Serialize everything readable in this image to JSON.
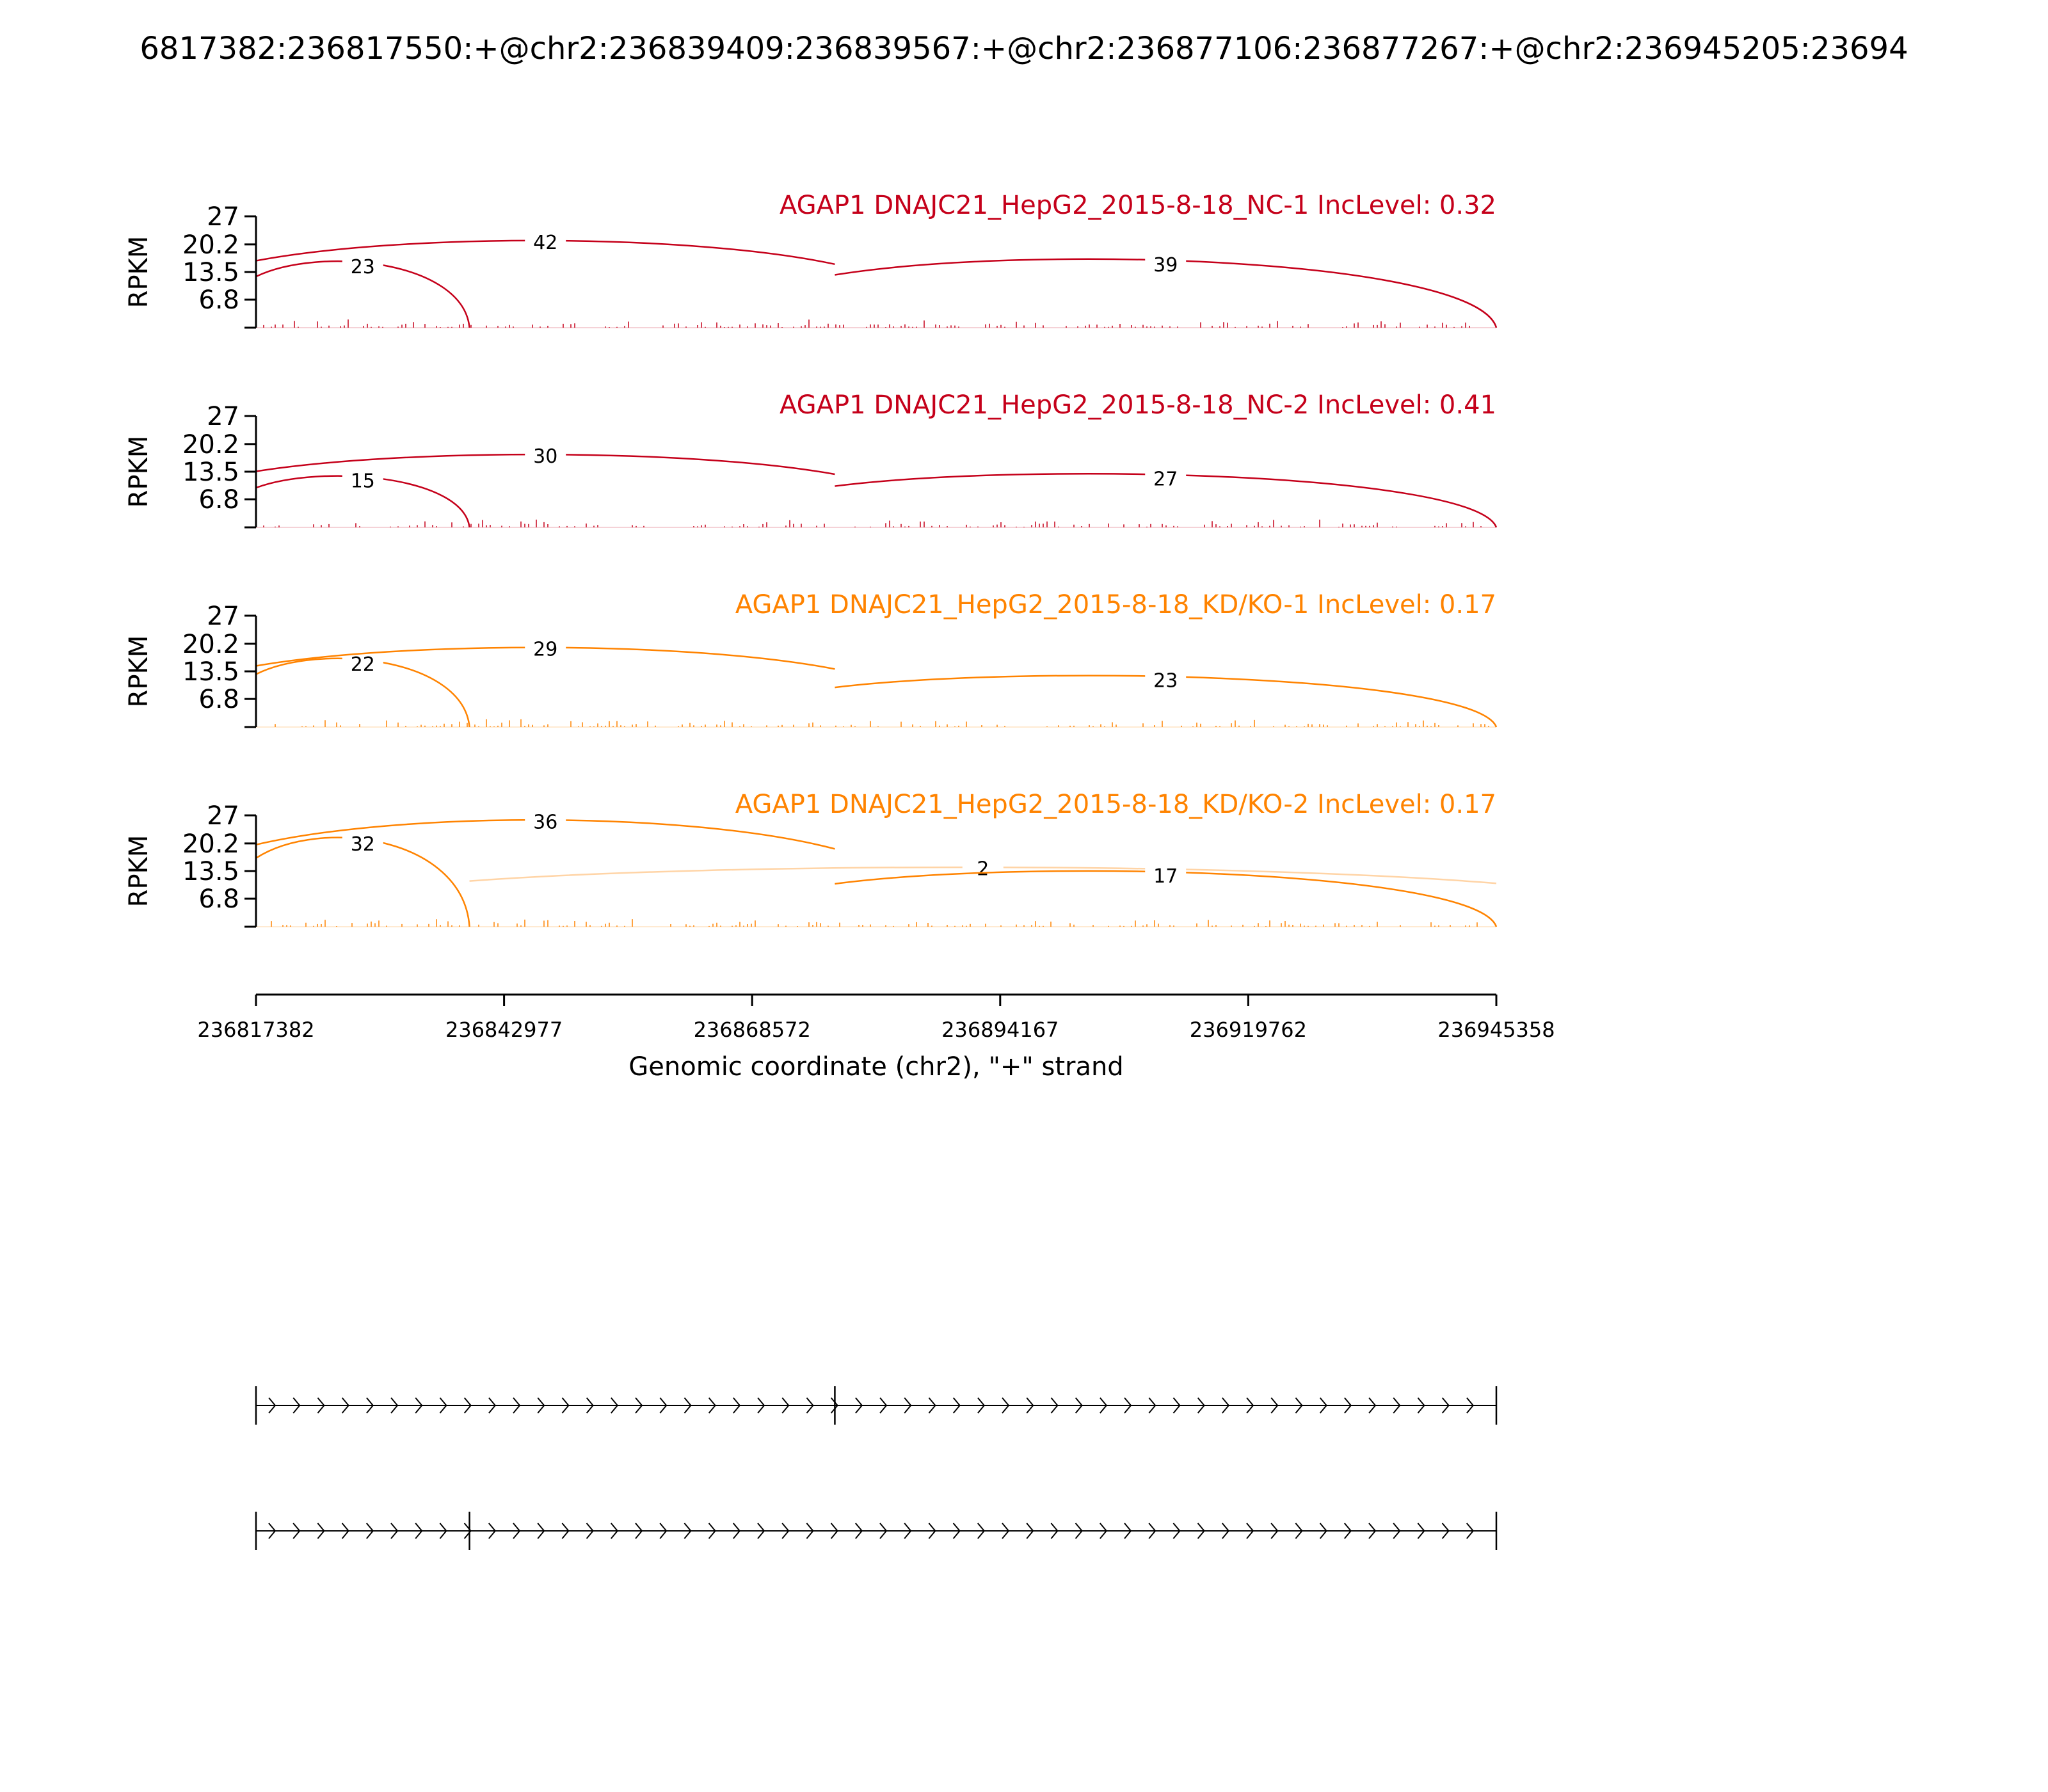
{
  "page_title": "6817382:236817550:+@chr2:236839409:236839567:+@chr2:236877106:236877267:+@chr2:236945205:23694",
  "chart_data": {
    "type": "sashimi",
    "xlabel": "Genomic coordinate (chr2), \"+\" strand",
    "xlim": [
      236817382,
      236945358
    ],
    "xticks": [
      236817382,
      236842977,
      236868572,
      236894167,
      236919762,
      236945358
    ],
    "xtick_labels": [
      "236817382",
      "236842977",
      "236868572",
      "236894167",
      "236919762",
      "236945358"
    ],
    "ylabel": "RPKM",
    "ylim": [
      0,
      27
    ],
    "yticks": [
      6.8,
      13.5,
      20.2,
      27
    ],
    "ytick_labels": [
      "6.8",
      "13.5",
      "20.2",
      "27"
    ],
    "exon_coords": [
      236839409,
      236877106
    ],
    "panels": [
      {
        "title": "AGAP1 DNAJC21_HepG2_2015-8-18_NC-1 IncLevel: 0.32",
        "color": "#c5001a",
        "junctions": [
          {
            "start": 236817382,
            "end": 236839409,
            "count": "23",
            "style": "below",
            "height": 15.5
          },
          {
            "start": 236817382,
            "end": 236877106,
            "count": "42",
            "style": "above",
            "height": 20.8
          },
          {
            "start": 236877106,
            "end": 236945358,
            "count": "39",
            "style": "below",
            "height": 16.0
          }
        ]
      },
      {
        "title": "AGAP1 DNAJC21_HepG2_2015-8-18_NC-2 IncLevel: 0.41",
        "color": "#c5001a",
        "junctions": [
          {
            "start": 236817382,
            "end": 236839409,
            "count": "15",
            "style": "below",
            "height": 12.0
          },
          {
            "start": 236817382,
            "end": 236877106,
            "count": "30",
            "style": "above",
            "height": 17.4
          },
          {
            "start": 236877106,
            "end": 236945358,
            "count": "27",
            "style": "below",
            "height": 12.5
          }
        ]
      },
      {
        "title": "AGAP1 DNAJC21_HepG2_2015-8-18_KD/KO-1 IncLevel: 0.17",
        "color": "#ff8300",
        "junctions": [
          {
            "start": 236817382,
            "end": 236839409,
            "count": "22",
            "style": "below",
            "height": 16.0
          },
          {
            "start": 236817382,
            "end": 236877106,
            "count": "29",
            "style": "above",
            "height": 19.0
          },
          {
            "start": 236877106,
            "end": 236945358,
            "count": "23",
            "style": "below",
            "height": 12.0
          }
        ]
      },
      {
        "title": "AGAP1 DNAJC21_HepG2_2015-8-18_KD/KO-2 IncLevel: 0.17",
        "color": "#ff8300",
        "junctions": [
          {
            "start": 236817382,
            "end": 236839409,
            "count": "32",
            "style": "below",
            "height": 20.8
          },
          {
            "start": 236817382,
            "end": 236877106,
            "count": "36",
            "style": "above",
            "height": 25.5
          },
          {
            "start": 236839409,
            "end": 236945358,
            "count": "2",
            "style": "above",
            "height": 14.2
          },
          {
            "start": 236877106,
            "end": 236945358,
            "count": "17",
            "style": "below",
            "height": 13.0
          }
        ]
      }
    ],
    "isoforms": [
      {
        "exons": [
          236817382,
          236877106,
          236945358
        ]
      },
      {
        "exons": [
          236817382,
          236839409,
          236945358
        ]
      }
    ]
  }
}
